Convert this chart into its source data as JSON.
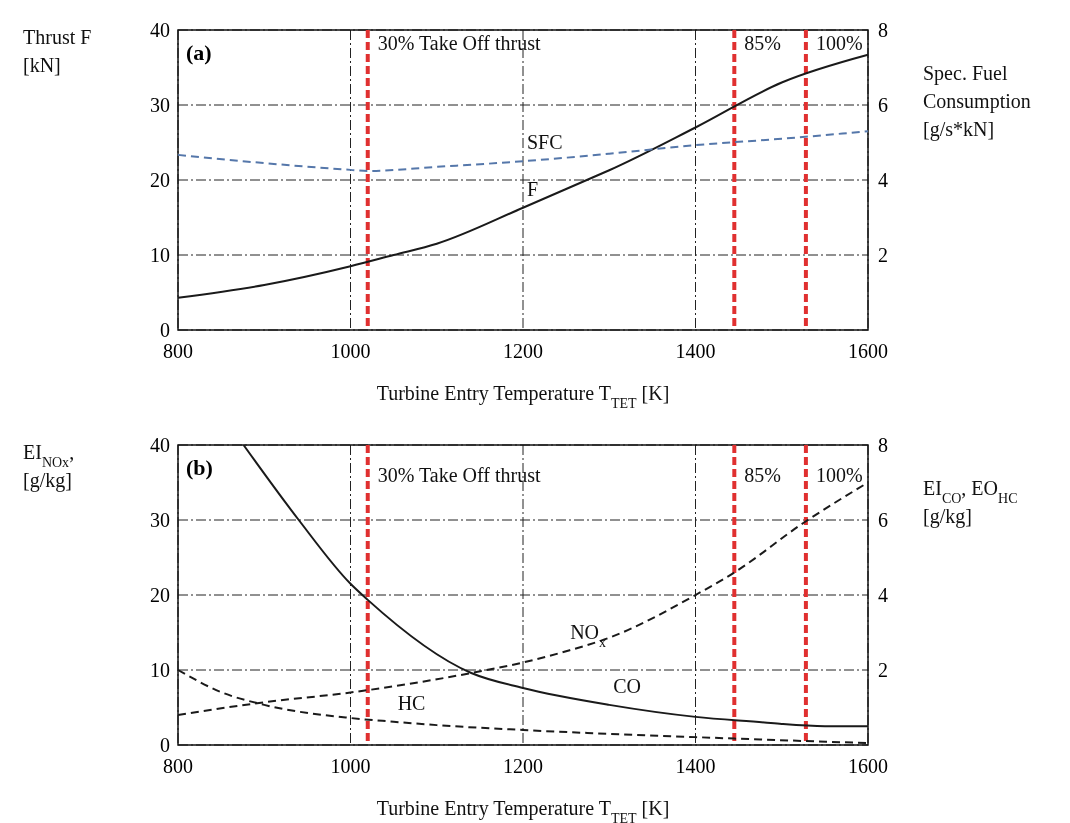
{
  "chart_data": [
    {
      "type": "line",
      "title": "(a)",
      "xlabel": "Turbine Entry  Temperature T$_{TET}$ [K]",
      "ylabel": "Thrust F\n[kN]",
      "y2label": "Spec. Fuel\nConsumption\n[g/s*kN]",
      "xlim": [
        800,
        1600
      ],
      "xticks": [
        800,
        1000,
        1200,
        1400,
        1600
      ],
      "ylim": [
        0,
        40
      ],
      "yticks": [
        0,
        10,
        20,
        30,
        40
      ],
      "y2lim": [
        0,
        8
      ],
      "y2ticks": [
        2,
        4,
        6,
        8
      ],
      "grid": true,
      "series": [
        {
          "name": "F",
          "color": "#1a1a1a",
          "line_style": "solid",
          "x": [
            800,
            900,
            1000,
            1050,
            1100,
            1200,
            1280,
            1300,
            1400,
            1500,
            1600
          ],
          "values": [
            4.3,
            6,
            8.5,
            10,
            11.5,
            16.3,
            20.3,
            21.3,
            27,
            33,
            36.7
          ]
        },
        {
          "name": "SFC",
          "color": "#5577aa",
          "line_style": "dashed",
          "axis": "y2",
          "x": [
            800,
            900,
            1000,
            1020,
            1100,
            1200,
            1300,
            1400,
            1500,
            1600
          ],
          "values": [
            4.67,
            4.45,
            4.27,
            4.24,
            4.35,
            4.5,
            4.7,
            4.93,
            5.1,
            5.3
          ]
        }
      ],
      "annotations": [
        {
          "text": "30% Take Off thrust",
          "x": 1020,
          "y": 38.3
        },
        {
          "text": "85%",
          "x": 1445,
          "y": 38.3
        },
        {
          "text": "100%",
          "x": 1528,
          "y": 38.3
        }
      ],
      "ref_lines": [
        {
          "axis": "x",
          "value": 1020,
          "color": "#e03030",
          "line_style": "dashed"
        },
        {
          "axis": "x",
          "value": 1445,
          "color": "#e03030",
          "line_style": "dashed"
        },
        {
          "axis": "x",
          "value": 1528,
          "color": "#e03030",
          "line_style": "dashed"
        }
      ]
    },
    {
      "type": "line",
      "title": "(b)",
      "xlabel": "Turbine Entry  Temperature T$_{TET}$ [K]",
      "ylabel": "EI$_{NOx}$,\n[g/kg]",
      "y2label": "EI$_{CO}$, EO$_{HC}$\n[g/kg]",
      "xlim": [
        800,
        1600
      ],
      "xticks": [
        800,
        1000,
        1200,
        1400,
        1600
      ],
      "ylim": [
        0,
        40
      ],
      "yticks": [
        0,
        10,
        20,
        30,
        40
      ],
      "y2lim": [
        0,
        8
      ],
      "y2ticks": [
        2,
        4,
        6,
        8
      ],
      "grid": true,
      "series": [
        {
          "name": "NO$_{x}$",
          "color": "#1a1a1a",
          "line_style": "dashed",
          "x": [
            800,
            900,
            1000,
            1140,
            1200,
            1250,
            1300,
            1400,
            1445,
            1525,
            1600
          ],
          "values": [
            4,
            5.7,
            7,
            9.6,
            11,
            12.5,
            14.3,
            20,
            23,
            29.6,
            35
          ]
        },
        {
          "name": "CO",
          "color": "#1a1a1a",
          "line_style": "solid",
          "axis": "y2",
          "x": [
            876,
            940,
            1000,
            1020,
            1140,
            1200,
            1300,
            1400,
            1480,
            1500,
            1550,
            1600
          ],
          "values": [
            8,
            6,
            4.3,
            3.87,
            1.92,
            1.52,
            1.07,
            0.75,
            0.6,
            0.56,
            0.5,
            0.5
          ]
        },
        {
          "name": "HC",
          "color": "#1a1a1a",
          "line_style": "dashed",
          "axis": "y2",
          "x": [
            800,
            850,
            900,
            1000,
            1050,
            1100,
            1200,
            1400,
            1600
          ],
          "values": [
            2,
            1.41,
            1.07,
            0.72,
            0.62,
            0.53,
            0.4,
            0.21,
            0.05
          ]
        }
      ],
      "annotations": [
        {
          "text": "30% Take Off thrust",
          "x": 1020,
          "y": 36
        },
        {
          "text": "85%",
          "x": 1445,
          "y": 36
        },
        {
          "text": "100%",
          "x": 1528,
          "y": 36
        }
      ],
      "ref_lines": [
        {
          "axis": "x",
          "value": 1020,
          "color": "#e03030",
          "line_style": "dashed"
        },
        {
          "axis": "x",
          "value": 1445,
          "color": "#e03030",
          "line_style": "dashed"
        },
        {
          "axis": "x",
          "value": 1528,
          "color": "#e03030",
          "line_style": "dashed"
        }
      ]
    }
  ]
}
